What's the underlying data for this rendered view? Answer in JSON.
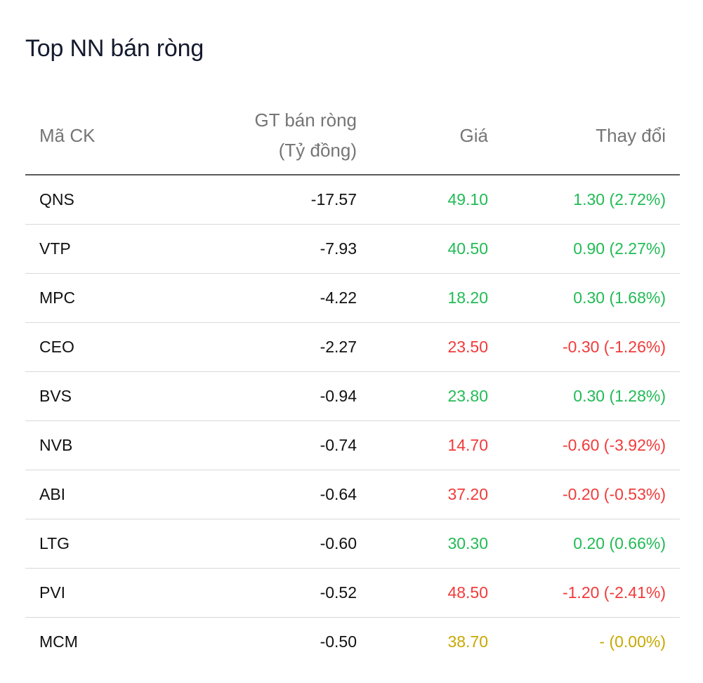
{
  "title": "Top NN bán ròng",
  "headers": {
    "symbol": "Mã CK",
    "net_value_line1": "GT bán ròng",
    "net_value_line2": "(Tỷ đồng)",
    "price": "Giá",
    "change": "Thay đổi"
  },
  "colors": {
    "up": "#22bb55",
    "down": "#f23a3a",
    "unchanged": "#c8a800"
  },
  "rows": [
    {
      "symbol": "QNS",
      "net_value": "-17.57",
      "price": "49.10",
      "change": "1.30 (2.72%)",
      "trend": "up"
    },
    {
      "symbol": "VTP",
      "net_value": "-7.93",
      "price": "40.50",
      "change": "0.90 (2.27%)",
      "trend": "up"
    },
    {
      "symbol": "MPC",
      "net_value": "-4.22",
      "price": "18.20",
      "change": "0.30 (1.68%)",
      "trend": "up"
    },
    {
      "symbol": "CEO",
      "net_value": "-2.27",
      "price": "23.50",
      "change": "-0.30 (-1.26%)",
      "trend": "down"
    },
    {
      "symbol": "BVS",
      "net_value": "-0.94",
      "price": "23.80",
      "change": "0.30 (1.28%)",
      "trend": "up"
    },
    {
      "symbol": "NVB",
      "net_value": "-0.74",
      "price": "14.70",
      "change": "-0.60 (-3.92%)",
      "trend": "down"
    },
    {
      "symbol": "ABI",
      "net_value": "-0.64",
      "price": "37.20",
      "change": "-0.20 (-0.53%)",
      "trend": "down"
    },
    {
      "symbol": "LTG",
      "net_value": "-0.60",
      "price": "30.30",
      "change": "0.20 (0.66%)",
      "trend": "up"
    },
    {
      "symbol": "PVI",
      "net_value": "-0.52",
      "price": "48.50",
      "change": "-1.20 (-2.41%)",
      "trend": "down"
    },
    {
      "symbol": "MCM",
      "net_value": "-0.50",
      "price": "38.70",
      "change": "- (0.00%)",
      "trend": "unchanged"
    }
  ]
}
